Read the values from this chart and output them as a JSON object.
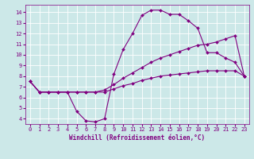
{
  "xlabel": "Windchill (Refroidissement éolien,°C)",
  "bg_color": "#cce8e8",
  "grid_color": "#ffffff",
  "line_color": "#800080",
  "xlim": [
    -0.5,
    23.5
  ],
  "ylim": [
    3.5,
    14.7
  ],
  "xticks": [
    0,
    1,
    2,
    3,
    4,
    5,
    6,
    7,
    8,
    9,
    10,
    11,
    12,
    13,
    14,
    15,
    16,
    17,
    18,
    19,
    20,
    21,
    22,
    23
  ],
  "yticks": [
    4,
    5,
    6,
    7,
    8,
    9,
    10,
    11,
    12,
    13,
    14
  ],
  "curve1_x": [
    0,
    1,
    2,
    3,
    4,
    5,
    6,
    7,
    8,
    9,
    10,
    11,
    12,
    13,
    14,
    15,
    16,
    17,
    18,
    19,
    20,
    21,
    22,
    23
  ],
  "curve1_y": [
    7.5,
    6.5,
    6.5,
    6.5,
    6.5,
    4.7,
    3.8,
    3.7,
    4.0,
    8.2,
    10.5,
    12.0,
    13.7,
    14.2,
    14.2,
    13.8,
    13.8,
    13.2,
    12.5,
    10.2,
    10.2,
    9.7,
    9.3,
    8.0
  ],
  "curve2_x": [
    0,
    1,
    2,
    3,
    4,
    5,
    6,
    7,
    8,
    9,
    10,
    11,
    12,
    13,
    14,
    15,
    16,
    17,
    18,
    19,
    20,
    21,
    22,
    23
  ],
  "curve2_y": [
    7.5,
    6.5,
    6.5,
    6.5,
    6.5,
    6.5,
    6.5,
    6.5,
    6.7,
    7.2,
    7.8,
    8.3,
    8.8,
    9.3,
    9.7,
    10.0,
    10.3,
    10.6,
    10.9,
    11.0,
    11.2,
    11.5,
    11.8,
    8.0
  ],
  "curve3_x": [
    0,
    1,
    2,
    3,
    4,
    5,
    6,
    7,
    8,
    9,
    10,
    11,
    12,
    13,
    14,
    15,
    16,
    17,
    18,
    19,
    20,
    21,
    22,
    23
  ],
  "curve3_y": [
    7.5,
    6.5,
    6.5,
    6.5,
    6.5,
    6.5,
    6.5,
    6.5,
    6.5,
    6.8,
    7.1,
    7.3,
    7.6,
    7.8,
    8.0,
    8.1,
    8.2,
    8.3,
    8.4,
    8.5,
    8.5,
    8.5,
    8.5,
    8.0
  ],
  "xlabel_fontsize": 5.5,
  "tick_fontsize": 5,
  "linewidth": 0.8,
  "markersize": 2.0
}
